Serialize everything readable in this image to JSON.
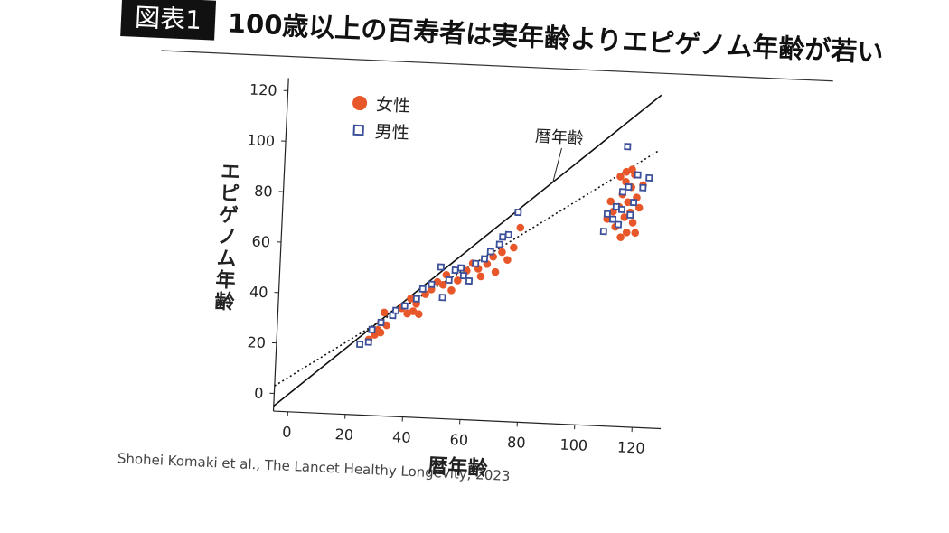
{
  "label": "図表1",
  "chart_data": {
    "type": "scatter",
    "title": "100歳以上の百寿者は実年齢よりエピゲノム年齢が若い",
    "source": "Shohei Komaki et al., The Lancet Healthy Longevity, 2023",
    "x_label": "暦年齢",
    "y_label": "エピゲノム年齢",
    "annotation": "暦年齢",
    "xlim": [
      -5,
      130
    ],
    "ylim": [
      -7,
      125
    ],
    "xticks": [
      0,
      20,
      40,
      60,
      80,
      100,
      120
    ],
    "yticks": [
      0,
      20,
      40,
      60,
      80,
      100,
      120
    ],
    "legend": "upper left",
    "reference_lines": [
      {
        "x": [
          -5,
          125
        ],
        "y": [
          -5,
          125
        ],
        "style": "solid"
      },
      {
        "x": [
          -5,
          125
        ],
        "y": [
          3,
          103
        ],
        "style": "dotted"
      }
    ],
    "series": [
      {
        "name": "女性",
        "color": "#e8572a",
        "marker": "circle",
        "x": [
          27,
          29,
          30,
          31,
          31,
          32,
          33,
          38,
          40,
          41,
          42,
          43,
          44,
          46,
          48,
          50,
          52,
          53,
          55,
          57,
          60,
          62,
          64,
          65,
          67,
          69,
          70,
          72,
          74,
          76,
          78,
          108,
          110,
          111,
          112,
          113,
          113,
          114,
          114,
          115,
          115,
          116,
          116,
          117,
          117,
          118,
          118,
          119,
          120,
          112,
          114,
          116,
          109
        ],
        "values": [
          23,
          25,
          27,
          26,
          30,
          34,
          29,
          36,
          34,
          40,
          35,
          38,
          34,
          42,
          44,
          47,
          46,
          50,
          44,
          48,
          52,
          55,
          53,
          50,
          55,
          58,
          52,
          60,
          57,
          62,
          70,
          75,
          78,
          72,
          80,
          68,
          85,
          76,
          90,
          70,
          82,
          88,
          78,
          93,
          74,
          84,
          70,
          80,
          89,
          92,
          94,
          95,
          82
        ]
      },
      {
        "name": "男性",
        "color": "#3b4f9a",
        "marker": "square",
        "x": [
          24,
          27,
          28,
          31,
          35,
          36,
          39,
          43,
          45,
          48,
          51,
          52,
          54,
          56,
          58,
          59,
          61,
          63,
          66,
          68,
          71,
          72,
          74,
          77,
          107,
          108,
          110,
          111,
          112,
          113,
          114,
          115,
          116,
          118,
          120,
          122,
          113,
          117
        ],
        "values": [
          21,
          22,
          27,
          30,
          33,
          35,
          37,
          40,
          44,
          46,
          53,
          41,
          48,
          52,
          53,
          50,
          48,
          55,
          57,
          60,
          63,
          66,
          67,
          76,
          70,
          77,
          75,
          80,
          73,
          86,
          104,
          88,
          77,
          93,
          88,
          92,
          79,
          82
        ]
      }
    ]
  }
}
